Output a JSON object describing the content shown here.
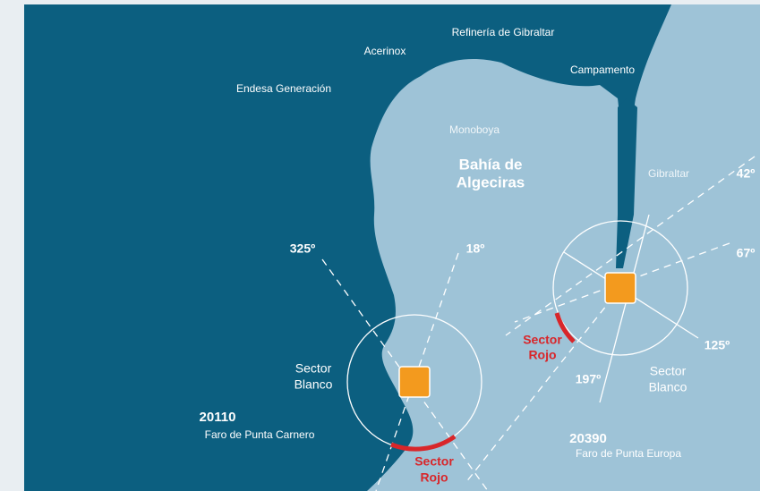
{
  "places": [
    {
      "label": "Refinería de Gibraltar"
    },
    {
      "label": "Acerinox"
    },
    {
      "label": "Campamento"
    },
    {
      "label": "Endesa Generación"
    },
    {
      "label": "Monoboya"
    },
    {
      "label": "Gibraltar"
    }
  ],
  "bay": {
    "lines": [
      "Bahía de",
      "Algeciras"
    ]
  },
  "lights": [
    {
      "id": "20110",
      "name": "Faro de Punta Carnero",
      "angles": [
        "325º",
        "18º"
      ],
      "white_sector": [
        "Sector",
        "Blanco"
      ],
      "red_sector": [
        "Sector",
        "Rojo"
      ]
    },
    {
      "id": "20390",
      "name": "Faro de Punta Europa",
      "angles": [
        "42º",
        "67º",
        "125º",
        "197º"
      ],
      "white_sector": [
        "Sector",
        "Blanco"
      ],
      "red_sector": [
        "Sector",
        "Rojo"
      ]
    }
  ]
}
